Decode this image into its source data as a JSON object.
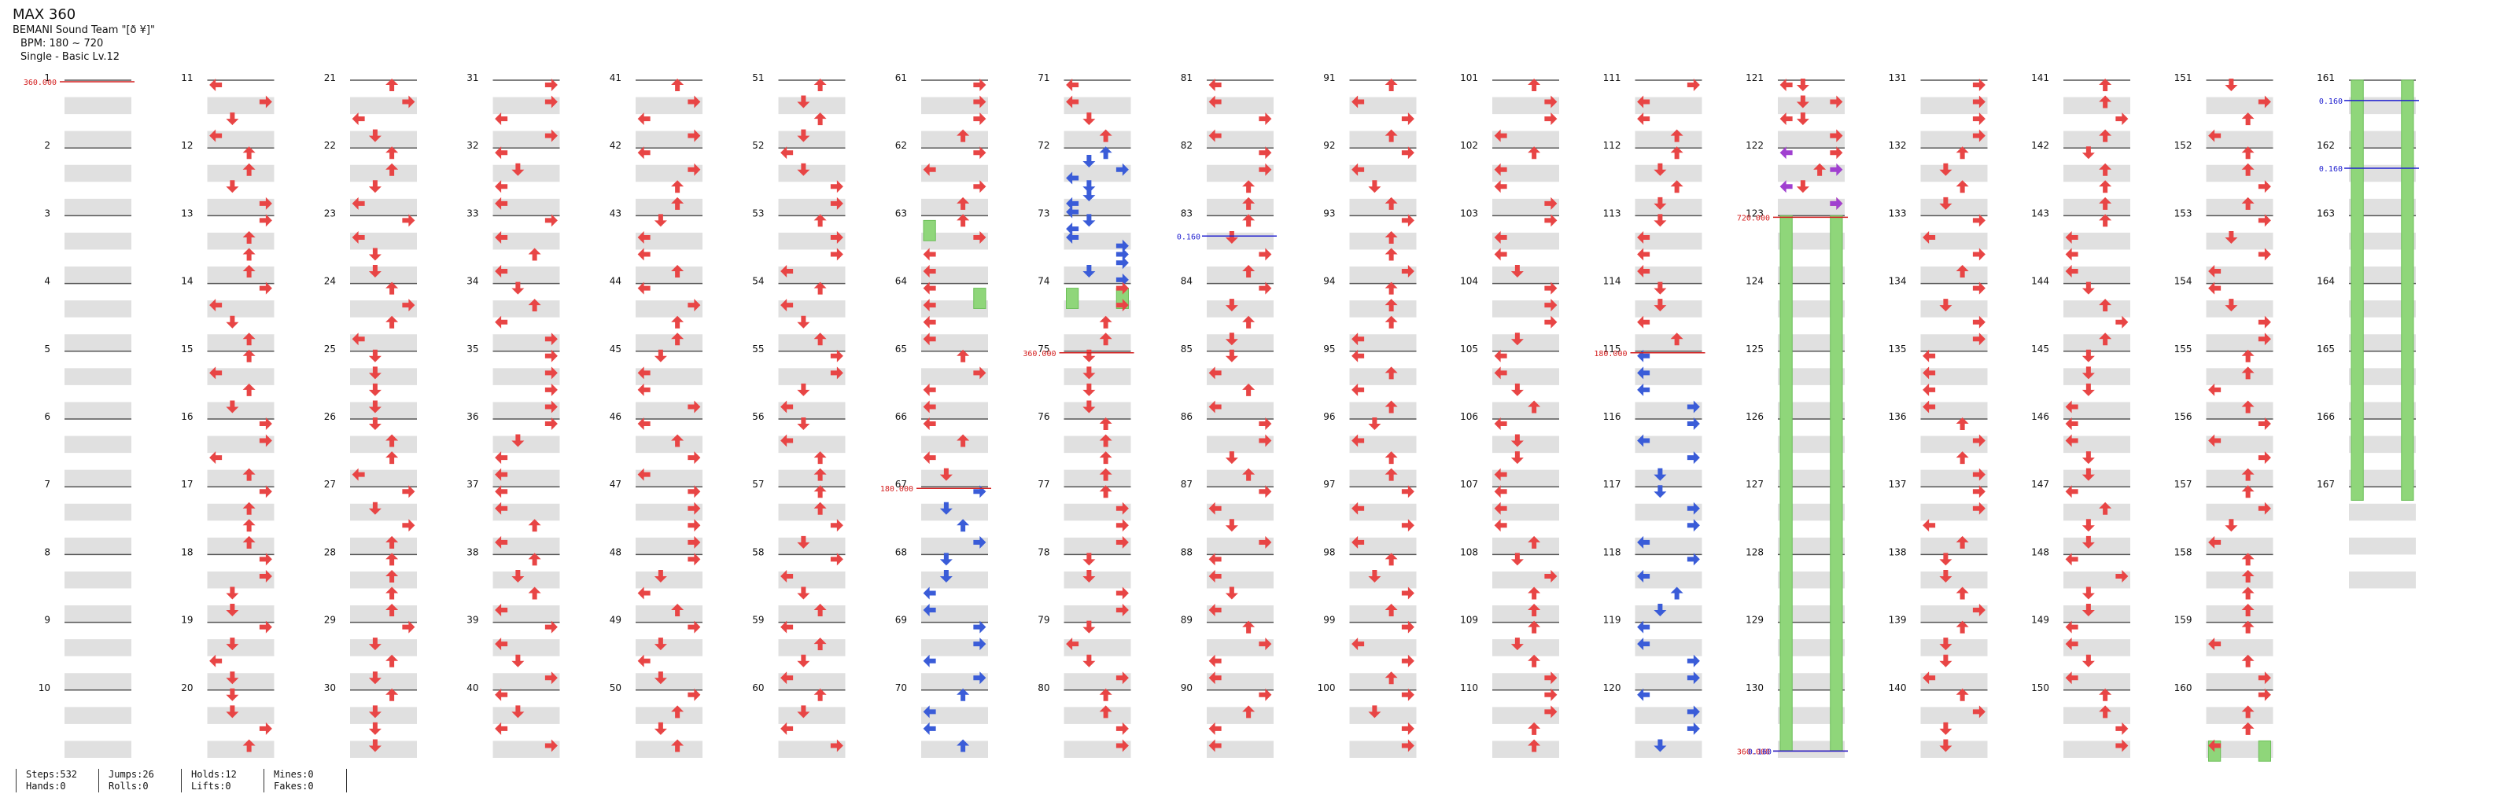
{
  "song": {
    "title": "MAX 360",
    "artist": "BEMANI Sound Team \"[ð  ¥]\"",
    "bpm_text": "BPM: 180 ~ 720",
    "difficulty": "Single - Basic Lv.12"
  },
  "bpm_markers": [
    {
      "measure": 1,
      "label": "360.000"
    },
    {
      "measure": 67,
      "label": "180.000"
    },
    {
      "measure": 75,
      "label": "360.000"
    },
    {
      "measure": 115,
      "label": "180.000"
    },
    {
      "measure": 123,
      "label": "720.000"
    },
    {
      "measure": 130,
      "label": "360.000"
    }
  ],
  "stop_markers": [
    {
      "measure": 83,
      "label": "0.160"
    },
    {
      "measure": 130,
      "label": "0.160"
    },
    {
      "measure": 161,
      "label": "0.160"
    },
    {
      "measure": 162,
      "label": "0.160"
    }
  ],
  "colors": {
    "arrow": "#e84545",
    "arrow_blue": "#3a5cd8",
    "hold": "#8fd67a",
    "bpm_line": "#d42020",
    "stop_line": "#2020d0",
    "row_fill": "#e0e0e0"
  },
  "stats": [
    [
      "Steps:532",
      "Hands:0"
    ],
    [
      "Jumps:26",
      "Rolls:0"
    ],
    [
      "Holds:12",
      "Lifts:0"
    ],
    [
      "Mines:0",
      "Fakes:0"
    ]
  ]
}
